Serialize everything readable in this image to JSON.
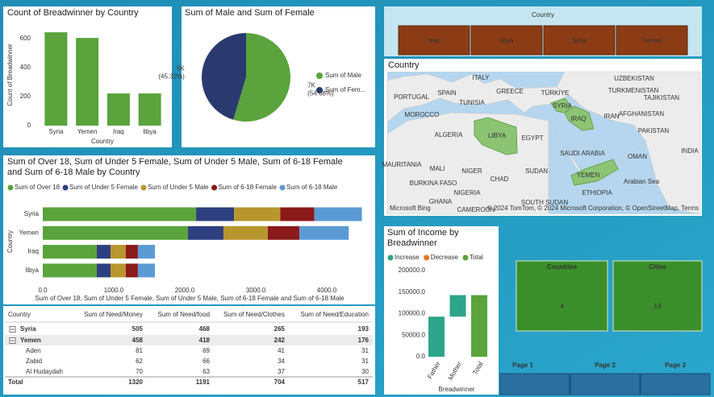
{
  "chart_data": [
    {
      "type": "bar",
      "title": "Count of Breadwinner by Country",
      "x_label": "Country",
      "y_label": "Count of Breadwinner",
      "categories": [
        "Syria",
        "Yemen",
        "Iraq",
        "libya"
      ],
      "values": [
        644,
        605,
        222,
        222
      ],
      "color": "#5aa33d",
      "ylim": [
        0,
        700
      ],
      "yticks": [
        0,
        200,
        400,
        600
      ]
    },
    {
      "type": "pie",
      "title": "Sum of Male and Sum of Female",
      "categories": [
        "Sum of Male",
        "Sum of Fem..."
      ],
      "values": [
        54.68,
        45.32
      ],
      "value_labels": [
        "(54.68%)",
        "(45.32%)"
      ],
      "amount_labels": [
        "7K",
        "5K"
      ],
      "colors": [
        "#5aa33d",
        "#2b3a6e"
      ]
    },
    {
      "type": "stacked-hbar",
      "title": "Sum of Over 18, Sum of Under 5 Female, Sum of Under 5 Male, Sum of 6-18 Female and Sum of 6-18 Male by Country",
      "x_label": "Sum of Over 18, Sum of Under 5 Female, Sum of Under 5 Male, Sum of 6-18 Female and Sum of 6-18 Male",
      "y_label": "Country",
      "categories": [
        "Syria",
        "Yemen",
        "Iraq",
        "libya"
      ],
      "series": [
        {
          "name": "Sum of Over 18",
          "color": "#5aa33d",
          "values": [
            2160,
            2045,
            760,
            760
          ]
        },
        {
          "name": "Sum of Under 5 Female",
          "color": "#2e3f7f",
          "values": [
            535,
            500,
            195,
            195
          ]
        },
        {
          "name": "Sum of Under 5 Male",
          "color": "#b8962e",
          "values": [
            650,
            625,
            215,
            215
          ]
        },
        {
          "name": "Sum of 6-18 Female",
          "color": "#8b1a1a",
          "values": [
            480,
            445,
            170,
            170
          ]
        },
        {
          "name": "Sum of 6-18 Male",
          "color": "#5b9bd5",
          "values": [
            670,
            695,
            240,
            240
          ]
        }
      ],
      "xlim": [
        0,
        4500
      ],
      "xticks": [
        {
          "value": 0,
          "label": "0.0"
        },
        {
          "value": 1000,
          "label": "1000.0"
        },
        {
          "value": 2000,
          "label": "2000.0"
        },
        {
          "value": 3000,
          "label": "3000.0"
        },
        {
          "value": 4000,
          "label": "4000.0"
        }
      ]
    },
    {
      "type": "waterfall",
      "title": "Sum of Income by Breadwinner",
      "x_label": "Breadwinner",
      "legend": [
        "Increase",
        "Decrease",
        "Total"
      ],
      "legend_colors": [
        "#2ea58a",
        "#e07b22",
        "#5aa33d"
      ],
      "categories": [
        "Father",
        "Mother",
        "Total"
      ],
      "values": [
        93000,
        50000,
        143000
      ],
      "ylim": [
        0,
        200000
      ],
      "yticks": [
        {
          "value": 0,
          "label": "0.0"
        },
        {
          "value": 50000,
          "label": "50000.0"
        },
        {
          "value": 100000,
          "label": "100000.0"
        },
        {
          "value": 150000,
          "label": "150000.0"
        },
        {
          "value": 200000,
          "label": "200000.0"
        }
      ]
    }
  ],
  "slicer": {
    "title": "Country",
    "items": [
      "Iraq",
      "libya",
      "Syria",
      "Yemen"
    ]
  },
  "map": {
    "title": "Country",
    "labels": [
      "ITALY",
      "GREECE",
      "TÜRKIYE",
      "UZBEKISTAN",
      "TURKMENISTAN",
      "TAJIKISTAN",
      "PORTUGAL",
      "SPAIN",
      "TUNISIA",
      "SYRIA",
      "IRAQ",
      "IRAN",
      "AFGHANISTAN",
      "MOROCCO",
      "LIBYA",
      "EGYPT",
      "ALGERIA",
      "PAKISTAN",
      "INDIA",
      "SAUDI ARABIA",
      "OMAN",
      "MAURITANIA",
      "MALI",
      "NIGER",
      "CHAD",
      "SUDAN",
      "YEMEN",
      "BURKINA FASO",
      "NIGERIA",
      "ETHIOPIA",
      "GHANA",
      "SOUTH SUDAN",
      "CAMEROON",
      "Arabian Sea"
    ],
    "credit": "© 2024 TomTom, © 2024 Microsoft Corporation, © OpenStreetMap, Terms",
    "brand": "Microsoft Bing"
  },
  "table": {
    "columns": [
      "Country",
      "Sum of Need/Money",
      "Sum of Need/food",
      "Sum of Need/Clothes",
      "Sum of Need/Education"
    ],
    "rows": [
      [
        "Syria",
        "505",
        "468",
        "265",
        "193"
      ],
      [
        "Yemen",
        "458",
        "418",
        "242",
        "176"
      ],
      [
        "Aden",
        "81",
        "69",
        "41",
        "31"
      ],
      [
        "Zabid",
        "62",
        "66",
        "34",
        "31"
      ],
      [
        "Al Hudaydah",
        "70",
        "63",
        "37",
        "30"
      ],
      [
        "Total",
        "1320",
        "1191",
        "704",
        "517"
      ]
    ]
  },
  "cards": [
    {
      "title": "Countries",
      "value": "4"
    },
    {
      "title": "Cities",
      "value": "19"
    }
  ],
  "pages": [
    "Page 1",
    "Page 2",
    "Page 3"
  ]
}
